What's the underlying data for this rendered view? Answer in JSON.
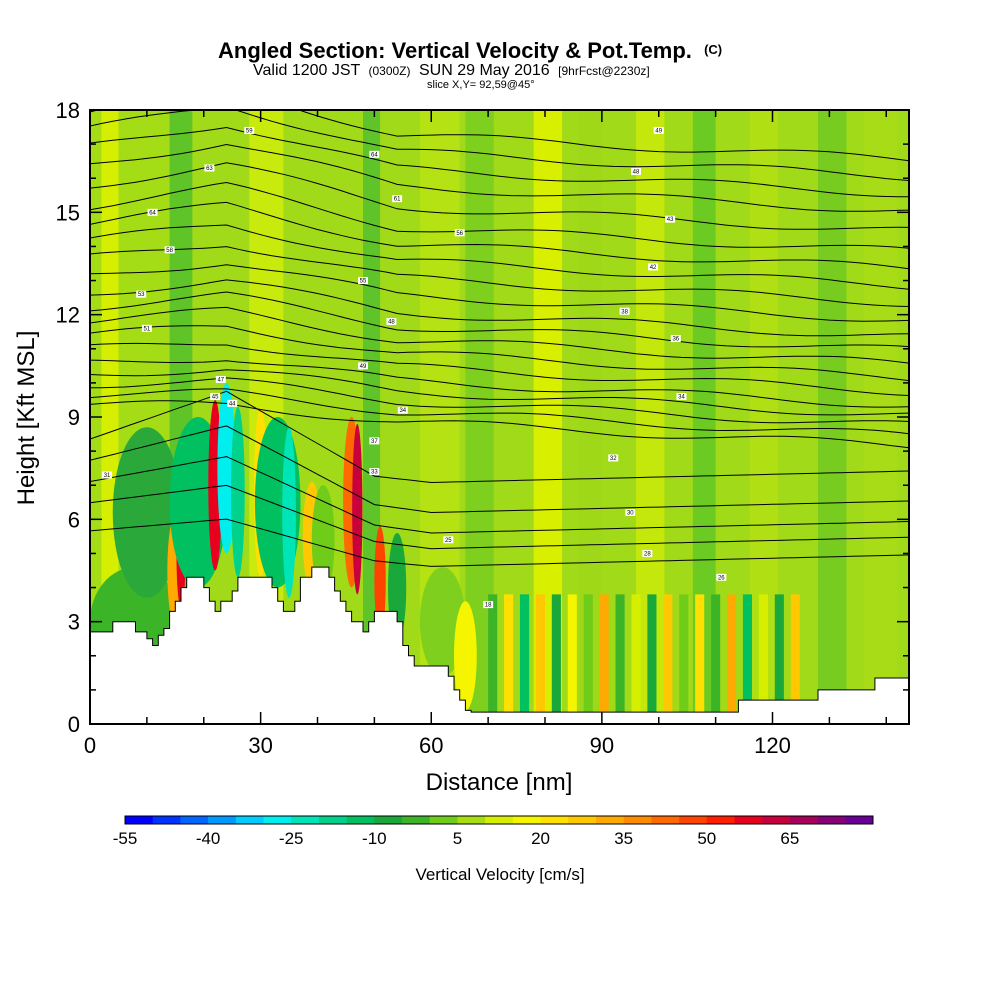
{
  "header": {
    "title_main": "Angled Section: Vertical Velocity & Pot.Temp.",
    "title_unit": "(C)",
    "valid_a": "Valid 1200 JST",
    "valid_b": "(0300Z)",
    "valid_c": "SUN 29 May 2016",
    "valid_d": "[9hrFcst@2230z]",
    "slice": "slice X,Y= 92,59@45°"
  },
  "chart_data": {
    "type": "heatmap",
    "title": "Angled Section: Vertical Velocity & Pot.Temp. (C)",
    "xlabel": "Distance [nm]",
    "ylabel": "Height [Kft MSL]",
    "xlim": [
      0,
      144
    ],
    "ylim": [
      0,
      18
    ],
    "x_ticks": [
      0,
      30,
      60,
      90,
      120
    ],
    "y_ticks": [
      0,
      3,
      6,
      9,
      12,
      15,
      18
    ],
    "grid": false,
    "colorbar": {
      "label": "Vertical Velocity [cm/s]",
      "tick_labels": [
        "-55",
        "-40",
        "-25",
        "-10",
        "5",
        "20",
        "35",
        "50",
        "65"
      ],
      "colors": [
        "#0000ff",
        "#0033ff",
        "#0066ff",
        "#0099ff",
        "#00ccff",
        "#00eeee",
        "#00e5b8",
        "#00d28c",
        "#00c060",
        "#1aa83a",
        "#3cb428",
        "#6fcc18",
        "#a8de10",
        "#d6ee00",
        "#f5f500",
        "#ffe000",
        "#ffc800",
        "#ffaa00",
        "#ff8c00",
        "#ff6a00",
        "#ff4400",
        "#ff1e00",
        "#e8001e",
        "#c8003c",
        "#a8005a",
        "#880078",
        "#680096"
      ]
    },
    "terrain_height_kft": [
      [
        0,
        2.7
      ],
      [
        3,
        2.7
      ],
      [
        4,
        3.0
      ],
      [
        7,
        3.0
      ],
      [
        8,
        2.7
      ],
      [
        10,
        2.5
      ],
      [
        11,
        2.3
      ],
      [
        12,
        2.6
      ],
      [
        13,
        2.8
      ],
      [
        14,
        3.3
      ],
      [
        15,
        3.6
      ],
      [
        16,
        4.0
      ],
      [
        17,
        4.3
      ],
      [
        19,
        4.3
      ],
      [
        20,
        4.0
      ],
      [
        21,
        3.6
      ],
      [
        22,
        3.3
      ],
      [
        23,
        3.6
      ],
      [
        24,
        3.6
      ],
      [
        25,
        3.9
      ],
      [
        26,
        4.3
      ],
      [
        31,
        4.3
      ],
      [
        32,
        4.0
      ],
      [
        33,
        3.6
      ],
      [
        34,
        3.3
      ],
      [
        36,
        3.6
      ],
      [
        37,
        4.3
      ],
      [
        39,
        4.6
      ],
      [
        41,
        4.6
      ],
      [
        42,
        4.3
      ],
      [
        43,
        3.9
      ],
      [
        44,
        3.6
      ],
      [
        45,
        3.3
      ],
      [
        46,
        3.0
      ],
      [
        47,
        3.0
      ],
      [
        48,
        2.7
      ],
      [
        49,
        3.0
      ],
      [
        50,
        3.3
      ],
      [
        51,
        3.3
      ],
      [
        52,
        3.3
      ],
      [
        53,
        3.3
      ],
      [
        54,
        3.0
      ],
      [
        55,
        2.3
      ],
      [
        56,
        2.0
      ],
      [
        57,
        1.7
      ],
      [
        59,
        1.7
      ],
      [
        61,
        1.7
      ],
      [
        62,
        1.7
      ],
      [
        63,
        1.4
      ],
      [
        64,
        1.0
      ],
      [
        65,
        0.7
      ],
      [
        66,
        0.4
      ],
      [
        67,
        0.35
      ],
      [
        113,
        0.35
      ],
      [
        114,
        0.7
      ],
      [
        115,
        0.7
      ],
      [
        127,
        0.7
      ],
      [
        128,
        1.0
      ],
      [
        137,
        1.0
      ],
      [
        138,
        1.35
      ],
      [
        144,
        1.35
      ]
    ],
    "contour_labels": [
      {
        "x": 28,
        "y": 17.4,
        "text": "59"
      },
      {
        "x": 50,
        "y": 16.7,
        "text": "64"
      },
      {
        "x": 21,
        "y": 16.3,
        "text": "63"
      },
      {
        "x": 54,
        "y": 15.4,
        "text": "61"
      },
      {
        "x": 11,
        "y": 15.0,
        "text": "64"
      },
      {
        "x": 65,
        "y": 14.4,
        "text": "56"
      },
      {
        "x": 14,
        "y": 13.9,
        "text": "58"
      },
      {
        "x": 48,
        "y": 13.0,
        "text": "55"
      },
      {
        "x": 9,
        "y": 12.6,
        "text": "53"
      },
      {
        "x": 53,
        "y": 11.8,
        "text": "48"
      },
      {
        "x": 10,
        "y": 11.6,
        "text": "51"
      },
      {
        "x": 48,
        "y": 10.5,
        "text": "49"
      },
      {
        "x": 23,
        "y": 10.1,
        "text": "47"
      },
      {
        "x": 22,
        "y": 9.6,
        "text": "45"
      },
      {
        "x": 25,
        "y": 9.4,
        "text": "44"
      },
      {
        "x": 55,
        "y": 9.2,
        "text": "34"
      },
      {
        "x": 50,
        "y": 8.3,
        "text": "37"
      },
      {
        "x": 50,
        "y": 7.4,
        "text": "33"
      },
      {
        "x": 3,
        "y": 7.3,
        "text": "31"
      },
      {
        "x": 63,
        "y": 5.4,
        "text": "25"
      },
      {
        "x": 70,
        "y": 3.5,
        "text": "18"
      },
      {
        "x": 100,
        "y": 17.4,
        "text": "49"
      },
      {
        "x": 96,
        "y": 16.2,
        "text": "48"
      },
      {
        "x": 102,
        "y": 14.8,
        "text": "43"
      },
      {
        "x": 99,
        "y": 13.4,
        "text": "42"
      },
      {
        "x": 94,
        "y": 12.1,
        "text": "38"
      },
      {
        "x": 103,
        "y": 11.3,
        "text": "36"
      },
      {
        "x": 104,
        "y": 9.6,
        "text": "34"
      },
      {
        "x": 92,
        "y": 7.8,
        "text": "32"
      },
      {
        "x": 95,
        "y": 6.2,
        "text": "30"
      },
      {
        "x": 98,
        "y": 5.0,
        "text": "28"
      },
      {
        "x": 111,
        "y": 4.3,
        "text": "26"
      }
    ]
  }
}
